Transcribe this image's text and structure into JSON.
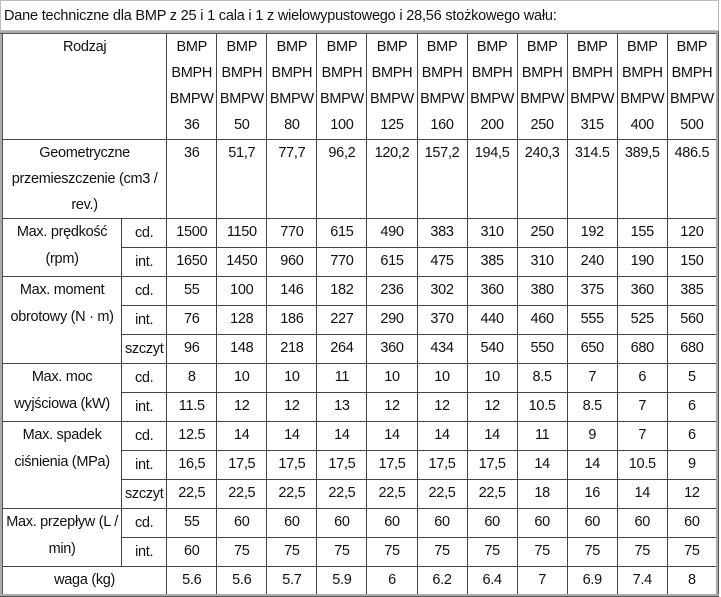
{
  "caption": "Dane techniczne dla BMP z 25 i 1 cala i 1 z wielowypustowego i 28,56 stożkowego wału:",
  "header": {
    "label": "Rodzaj",
    "models": [
      {
        "l1": "BMP",
        "l2": "BMPH",
        "l3": "BMPW",
        "size": "36"
      },
      {
        "l1": "BMP",
        "l2": "BMPH",
        "l3": "BMPW",
        "size": "50"
      },
      {
        "l1": "BMP",
        "l2": "BMPH",
        "l3": "BMPW",
        "size": "80"
      },
      {
        "l1": "BMP",
        "l2": "BMPH",
        "l3": "BMPW",
        "size": "100"
      },
      {
        "l1": "BMP",
        "l2": "BMPH",
        "l3": "BMPW",
        "size": "125"
      },
      {
        "l1": "BMP",
        "l2": "BMPH",
        "l3": "BMPW",
        "size": "160"
      },
      {
        "l1": "BMP",
        "l2": "BMPH",
        "l3": "BMPW",
        "size": "200"
      },
      {
        "l1": "BMP",
        "l2": "BMPH",
        "l3": "BMPW",
        "size": "250"
      },
      {
        "l1": "BMP",
        "l2": "BMPH",
        "l3": "BMPW",
        "size": "315"
      },
      {
        "l1": "BMP",
        "l2": "BMPH",
        "l3": "BMPW",
        "size": "400"
      },
      {
        "l1": "BMP",
        "l2": "BMPH",
        "l3": "BMPW",
        "size": "500"
      }
    ]
  },
  "geometric": {
    "label": "Geometryczne przemieszczenie (cm3 / rev.)",
    "values": [
      "36",
      "51,7",
      "77,7",
      "96,2",
      "120,2",
      "157,2",
      "194,5",
      "240,3",
      "314.5",
      "389,5",
      "486.5"
    ]
  },
  "groups": [
    {
      "label": "Max. prędkość (rpm)",
      "rows": [
        {
          "sub": "cd.",
          "values": [
            "1500",
            "1150",
            "770",
            "615",
            "490",
            "383",
            "310",
            "250",
            "192",
            "155",
            "120"
          ]
        },
        {
          "sub": "int.",
          "values": [
            "1650",
            "1450",
            "960",
            "770",
            "615",
            "475",
            "385",
            "310",
            "240",
            "190",
            "150"
          ]
        }
      ]
    },
    {
      "label": "Max. moment obrotowy (N · m)",
      "rows": [
        {
          "sub": "cd.",
          "values": [
            "55",
            "100",
            "146",
            "182",
            "236",
            "302",
            "360",
            "380",
            "375",
            "360",
            "385"
          ]
        },
        {
          "sub": "int.",
          "values": [
            "76",
            "128",
            "186",
            "227",
            "290",
            "370",
            "440",
            "460",
            "555",
            "525",
            "560"
          ]
        },
        {
          "sub": "szczyt",
          "values": [
            "96",
            "148",
            "218",
            "264",
            "360",
            "434",
            "540",
            "550",
            "650",
            "680",
            "680"
          ]
        }
      ]
    },
    {
      "label": "Max. moc wyjściowa (kW)",
      "rows": [
        {
          "sub": "cd.",
          "values": [
            "8",
            "10",
            "10",
            "11",
            "10",
            "10",
            "10",
            "8.5",
            "7",
            "6",
            "5"
          ]
        },
        {
          "sub": "int.",
          "values": [
            "11.5",
            "12",
            "12",
            "13",
            "12",
            "12",
            "12",
            "10.5",
            "8.5",
            "7",
            "6"
          ]
        }
      ]
    },
    {
      "label": "Max. spadek ciśnienia (MPa)",
      "rows": [
        {
          "sub": "cd.",
          "values": [
            "12.5",
            "14",
            "14",
            "14",
            "14",
            "14",
            "14",
            "11",
            "9",
            "7",
            "6"
          ]
        },
        {
          "sub": "int.",
          "values": [
            "16,5",
            "17,5",
            "17,5",
            "17,5",
            "17,5",
            "17,5",
            "17,5",
            "14",
            "14",
            "10.5",
            "9"
          ]
        },
        {
          "sub": "szczyt",
          "values": [
            "22,5",
            "22,5",
            "22,5",
            "22,5",
            "22,5",
            "22,5",
            "22,5",
            "18",
            "16",
            "14",
            "12"
          ]
        }
      ]
    },
    {
      "label": "Max. przepływ (L / min)",
      "rows": [
        {
          "sub": "cd.",
          "values": [
            "55",
            "60",
            "60",
            "60",
            "60",
            "60",
            "60",
            "60",
            "60",
            "60",
            "60"
          ]
        },
        {
          "sub": "int.",
          "values": [
            "60",
            "75",
            "75",
            "75",
            "75",
            "75",
            "75",
            "75",
            "75",
            "75",
            "75"
          ]
        }
      ]
    }
  ],
  "weight": {
    "label": "waga (kg)",
    "values": [
      "5.6",
      "5.6",
      "5.7",
      "5.9",
      "6",
      "6.2",
      "6.4",
      "7",
      "6.9",
      "7.4",
      "8"
    ]
  }
}
